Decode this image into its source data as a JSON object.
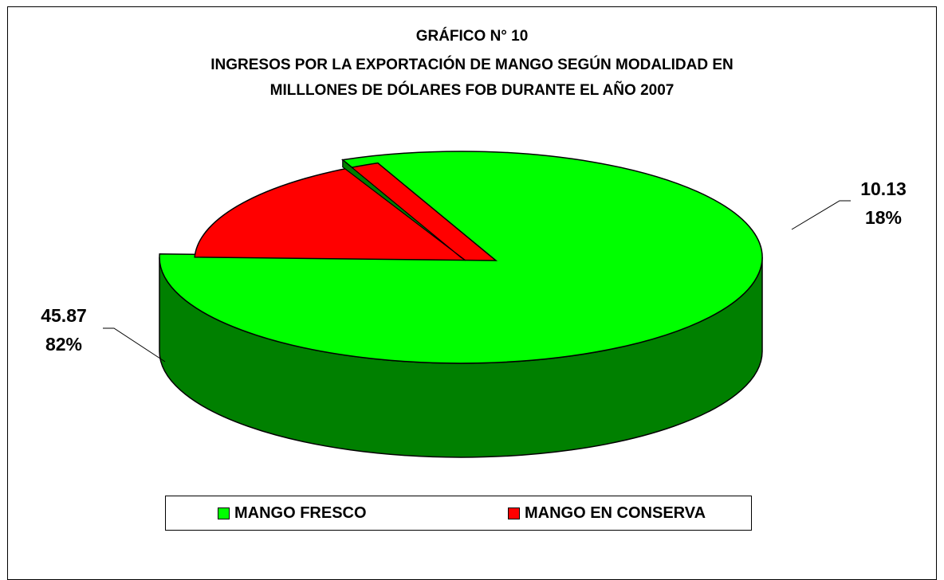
{
  "chart_data": {
    "type": "pie",
    "title_lines": [
      "GRÁFICO N° 10",
      "INGRESOS POR LA EXPORTACIÓN DE MANGO SEGÚN MODALIDAD   EN",
      "MILLLONES DE DÓLARES FOB DURANTE EL AÑO 2007"
    ],
    "slices": [
      {
        "name": "MANGO FRESCO",
        "value": 45.87,
        "percent_label": "82%",
        "value_label": "45.87",
        "color": "#00FF00",
        "side_color": "#008000"
      },
      {
        "name": "MANGO EN CONSERVA",
        "value": 10.13,
        "percent_label": "18%",
        "value_label": "10.13",
        "color": "#FF0000",
        "side_color": "#800000"
      }
    ],
    "legend_position": "bottom",
    "style": "3d-exploded"
  }
}
